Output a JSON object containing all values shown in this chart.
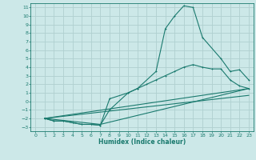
{
  "title": "",
  "xlabel": "Humidex (Indice chaleur)",
  "bg_color": "#cce8e8",
  "grid_color": "#b0d0d0",
  "line_color": "#1a7a6e",
  "xlim": [
    -0.5,
    23.5
  ],
  "ylim": [
    -3.5,
    11.5
  ],
  "xticks": [
    0,
    1,
    2,
    3,
    4,
    5,
    6,
    7,
    8,
    9,
    10,
    11,
    12,
    13,
    14,
    15,
    16,
    17,
    18,
    19,
    20,
    21,
    22,
    23
  ],
  "yticks": [
    -3,
    -2,
    -1,
    0,
    1,
    2,
    3,
    4,
    5,
    6,
    7,
    8,
    9,
    10,
    11
  ],
  "line1_x": [
    1,
    2,
    3,
    4,
    5,
    6,
    7,
    8,
    10,
    11,
    13,
    14,
    15,
    16,
    17,
    18,
    20,
    21,
    22,
    23
  ],
  "line1_y": [
    -2.0,
    -2.3,
    -2.3,
    -2.5,
    -2.7,
    -2.7,
    -2.8,
    -1.0,
    1.0,
    1.5,
    3.5,
    8.5,
    10.0,
    11.2,
    11.0,
    7.5,
    5.0,
    3.5,
    3.7,
    2.5
  ],
  "line2_x": [
    1,
    2,
    3,
    4,
    5,
    6,
    7,
    8,
    10,
    11,
    12,
    13,
    14,
    15,
    16,
    17,
    18,
    19,
    20,
    21,
    22,
    23
  ],
  "line2_y": [
    -2.0,
    -2.3,
    -2.3,
    -2.5,
    -2.7,
    -2.7,
    -2.8,
    0.3,
    1.0,
    1.5,
    2.0,
    2.5,
    3.0,
    3.5,
    4.0,
    4.3,
    4.0,
    3.8,
    3.8,
    2.5,
    1.8,
    1.5
  ],
  "line3_x": [
    1,
    7,
    23
  ],
  "line3_y": [
    -2.0,
    -2.7,
    1.5
  ],
  "line4_x": [
    1,
    23
  ],
  "line4_y": [
    -2.0,
    1.5
  ],
  "line5_x": [
    1,
    23
  ],
  "line5_y": [
    -2.0,
    0.7
  ]
}
